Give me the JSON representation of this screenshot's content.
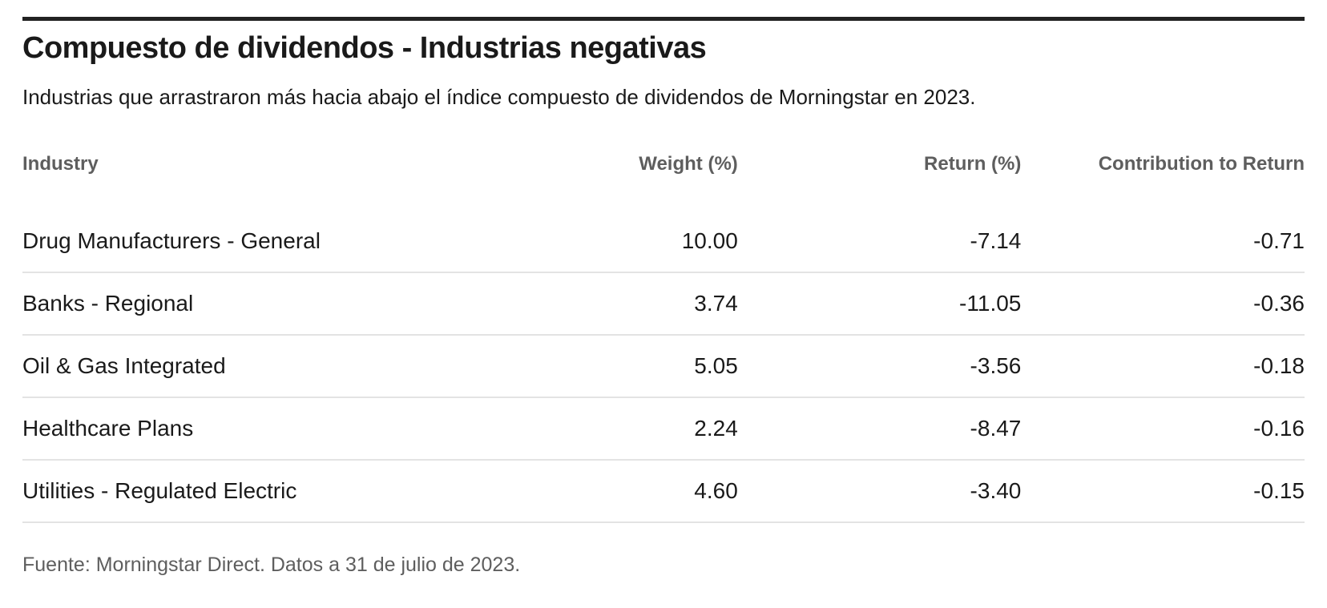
{
  "header": {
    "title": "Compuesto de dividendos - Industrias negativas",
    "subtitle": "Industrias que arrastraron más hacia abajo el índice compuesto de dividendos de Morningstar en 2023."
  },
  "table": {
    "columns": [
      "Industry",
      "Weight (%)",
      "Return (%)",
      "Contribution to Return"
    ],
    "rows": [
      {
        "industry": "Drug Manufacturers - General",
        "weight": "10.00",
        "return": "-7.14",
        "contribution": "-0.71"
      },
      {
        "industry": "Banks - Regional",
        "weight": "3.74",
        "return": "-11.05",
        "contribution": "-0.36"
      },
      {
        "industry": "Oil & Gas Integrated",
        "weight": "5.05",
        "return": "-3.56",
        "contribution": "-0.18"
      },
      {
        "industry": "Healthcare Plans",
        "weight": "2.24",
        "return": "-8.47",
        "contribution": "-0.16"
      },
      {
        "industry": "Utilities - Regulated Electric",
        "weight": "4.60",
        "return": "-3.40",
        "contribution": "-0.15"
      }
    ]
  },
  "footer": {
    "source": "Fuente: Morningstar Direct. Datos a 31 de julio de 2023."
  },
  "colors": {
    "top_rule": "#222222",
    "title_text": "#1a1a1a",
    "body_text": "#1a1a1a",
    "header_text": "#5e5e5e",
    "source_text": "#5e5e5e",
    "row_separator": "#e3e3e3",
    "background": "#ffffff"
  },
  "chart_data": {
    "type": "table",
    "title": "Compuesto de dividendos - Industrias negativas",
    "subtitle": "Industrias que arrastraron más hacia abajo el índice compuesto de dividendos de Morningstar en 2023.",
    "columns": [
      "Industry",
      "Weight (%)",
      "Return (%)",
      "Contribution to Return"
    ],
    "rows": [
      [
        "Drug Manufacturers - General",
        10.0,
        -7.14,
        -0.71
      ],
      [
        "Banks - Regional",
        3.74,
        -11.05,
        -0.36
      ],
      [
        "Oil & Gas Integrated",
        5.05,
        -3.56,
        -0.18
      ],
      [
        "Healthcare Plans",
        2.24,
        -8.47,
        -0.16
      ],
      [
        "Utilities - Regulated Electric",
        4.6,
        -3.4,
        -0.15
      ]
    ],
    "source": "Fuente: Morningstar Direct. Datos a 31 de julio de 2023."
  }
}
